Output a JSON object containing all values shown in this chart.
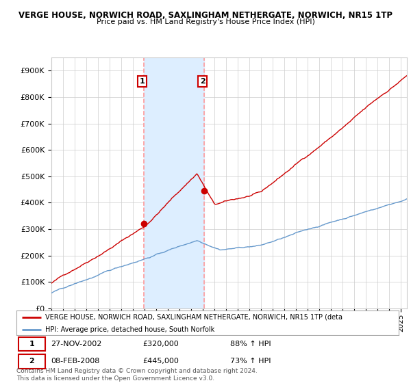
{
  "title": "VERGE HOUSE, NORWICH ROAD, SAXLINGHAM NETHERGATE, NORWICH, NR15 1TP",
  "subtitle": "Price paid vs. HM Land Registry's House Price Index (HPI)",
  "xlim_start": 1995.0,
  "xlim_end": 2025.5,
  "ylim": [
    0,
    950000
  ],
  "yticks": [
    0,
    100000,
    200000,
    300000,
    400000,
    500000,
    600000,
    700000,
    800000,
    900000
  ],
  "ytick_labels": [
    "£0",
    "£100K",
    "£200K",
    "£300K",
    "£400K",
    "£500K",
    "£600K",
    "£700K",
    "£800K",
    "£900K"
  ],
  "sale1_x": 2002.92,
  "sale1_y": 320000,
  "sale2_x": 2008.12,
  "sale2_y": 445000,
  "sale1_date": "27-NOV-2002",
  "sale1_price": "£320,000",
  "sale1_hpi": "88% ↑ HPI",
  "sale2_date": "08-FEB-2008",
  "sale2_price": "£445,000",
  "sale2_hpi": "73% ↑ HPI",
  "line_red_color": "#cc0000",
  "line_blue_color": "#6699cc",
  "shade_color": "#ddeeff",
  "dashed_color": "#ff9999",
  "marker_box_color": "#cc0000",
  "grid_color": "#cccccc",
  "bg_color": "#ffffff",
  "legend_red_label": "VERGE HOUSE, NORWICH ROAD, SAXLINGHAM NETHERGATE, NORWICH, NR15 1TP (deta",
  "legend_blue_label": "HPI: Average price, detached house, South Norfolk",
  "footer1": "Contains HM Land Registry data © Crown copyright and database right 2024.",
  "footer2": "This data is licensed under the Open Government Licence v3.0."
}
